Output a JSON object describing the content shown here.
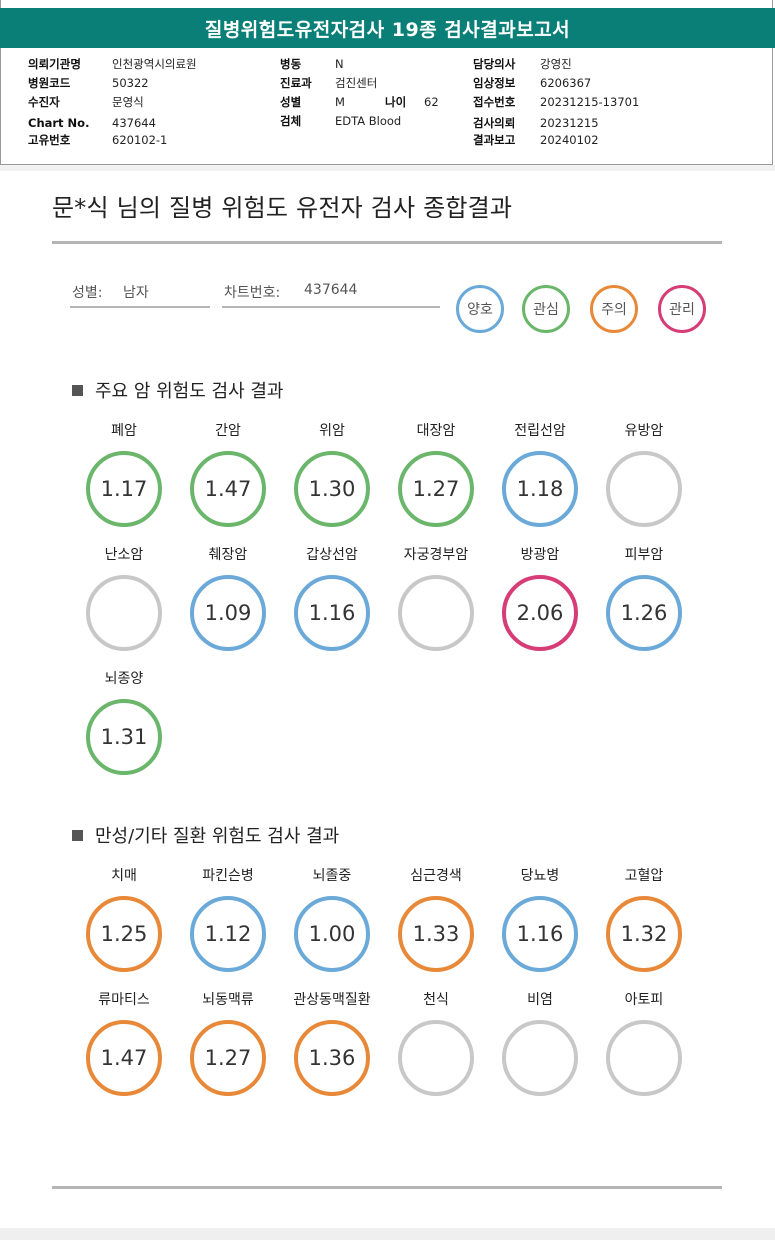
{
  "header": {
    "title": "질병위험도유전자검사 19종 검사결과보고서",
    "rows": [
      {
        "l1": "의뢰기관명",
        "v1": "인천광역시의료원",
        "l2": "병동",
        "v2": "N",
        "l3": "담당의사",
        "v3": "강영진"
      },
      {
        "l1": "병원코드",
        "v1": "50322",
        "l2": "진료과",
        "v2": "검진센터",
        "l3": "임상정보",
        "v3": "6206367"
      },
      {
        "l1": "수진자",
        "v1": "문영식",
        "l2": "성별",
        "v2": "M",
        "l2b": "나이",
        "v2b": "62",
        "l3": "접수번호",
        "v3": "20231215-13701"
      },
      {
        "l1": "Chart No.",
        "v1": "437644",
        "l2": "검체",
        "v2": "EDTA Blood",
        "l3": "검사의뢰",
        "v3": "20231215"
      },
      {
        "l1": "고유번호",
        "v1": "620102-1",
        "l3": "결과보고",
        "v3": "20240102"
      }
    ]
  },
  "summary": {
    "title": "문*식 님의 질병 위험도 유전자 검사 종합결과",
    "gender_label": "성별:",
    "gender_value": "남자",
    "chart_label": "차트번호:",
    "chart_value": "437644"
  },
  "legend": [
    {
      "label": "양호",
      "color": "#6aa9d8"
    },
    {
      "label": "관심",
      "color": "#6ab66a"
    },
    {
      "label": "주의",
      "color": "#e8893a"
    },
    {
      "label": "관리",
      "color": "#d63d76"
    }
  ],
  "cancer_section": {
    "heading": "주요 암 위험도 검사 결과",
    "items": [
      {
        "name": "폐암",
        "value": "1.17",
        "level": "관심"
      },
      {
        "name": "간암",
        "value": "1.47",
        "level": "관심"
      },
      {
        "name": "위암",
        "value": "1.30",
        "level": "관심"
      },
      {
        "name": "대장암",
        "value": "1.27",
        "level": "관심"
      },
      {
        "name": "전립선암",
        "value": "1.18",
        "level": "양호"
      },
      {
        "name": "유방암",
        "value": "",
        "level": "none"
      },
      {
        "name": "난소암",
        "value": "",
        "level": "none"
      },
      {
        "name": "췌장암",
        "value": "1.09",
        "level": "양호"
      },
      {
        "name": "갑상선암",
        "value": "1.16",
        "level": "양호"
      },
      {
        "name": "자궁경부암",
        "value": "",
        "level": "none"
      },
      {
        "name": "방광암",
        "value": "2.06",
        "level": "관리"
      },
      {
        "name": "피부암",
        "value": "1.26",
        "level": "양호"
      },
      {
        "name": "뇌종양",
        "value": "1.31",
        "level": "관심"
      }
    ]
  },
  "chronic_section": {
    "heading": "만성/기타 질환 위험도 검사 결과",
    "items": [
      {
        "name": "치매",
        "value": "1.25",
        "level": "주의"
      },
      {
        "name": "파킨슨병",
        "value": "1.12",
        "level": "양호"
      },
      {
        "name": "뇌졸중",
        "value": "1.00",
        "level": "양호"
      },
      {
        "name": "심근경색",
        "value": "1.33",
        "level": "주의"
      },
      {
        "name": "당뇨병",
        "value": "1.16",
        "level": "양호"
      },
      {
        "name": "고혈압",
        "value": "1.32",
        "level": "주의"
      },
      {
        "name": "류마티스",
        "value": "1.47",
        "level": "주의"
      },
      {
        "name": "뇌동맥류",
        "value": "1.27",
        "level": "주의"
      },
      {
        "name": "관상동맥질환",
        "value": "1.36",
        "level": "주의"
      },
      {
        "name": "천식",
        "value": "",
        "level": "none"
      },
      {
        "name": "비염",
        "value": "",
        "level": "none"
      },
      {
        "name": "아토피",
        "value": "",
        "level": "none"
      }
    ]
  },
  "none_color": "#c8c8c8"
}
